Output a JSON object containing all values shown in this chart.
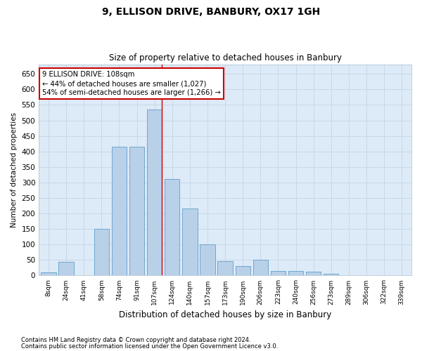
{
  "title1": "9, ELLISON DRIVE, BANBURY, OX17 1GH",
  "title2": "Size of property relative to detached houses in Banbury",
  "xlabel": "Distribution of detached houses by size in Banbury",
  "ylabel": "Number of detached properties",
  "bar_color": "#b8d0e8",
  "bar_edge_color": "#6fa8d0",
  "grid_color": "#c8d8e8",
  "bg_color": "#ddeaf7",
  "categories": [
    "8sqm",
    "24sqm",
    "41sqm",
    "58sqm",
    "74sqm",
    "91sqm",
    "107sqm",
    "124sqm",
    "140sqm",
    "157sqm",
    "173sqm",
    "190sqm",
    "206sqm",
    "223sqm",
    "240sqm",
    "256sqm",
    "273sqm",
    "289sqm",
    "306sqm",
    "322sqm",
    "339sqm"
  ],
  "values": [
    10,
    45,
    0,
    150,
    415,
    415,
    535,
    310,
    215,
    100,
    47,
    30,
    50,
    15,
    15,
    12,
    5,
    2,
    2,
    0,
    2
  ],
  "ylim": [
    0,
    680
  ],
  "yticks": [
    0,
    50,
    100,
    150,
    200,
    250,
    300,
    350,
    400,
    450,
    500,
    550,
    600,
    650
  ],
  "annotation_title": "9 ELLISON DRIVE: 108sqm",
  "annotation_line1": "← 44% of detached houses are smaller (1,027)",
  "annotation_line2": "54% of semi-detached houses are larger (1,266) →",
  "footnote1": "Contains HM Land Registry data © Crown copyright and database right 2024.",
  "footnote2": "Contains public sector information licensed under the Open Government Licence v3.0."
}
